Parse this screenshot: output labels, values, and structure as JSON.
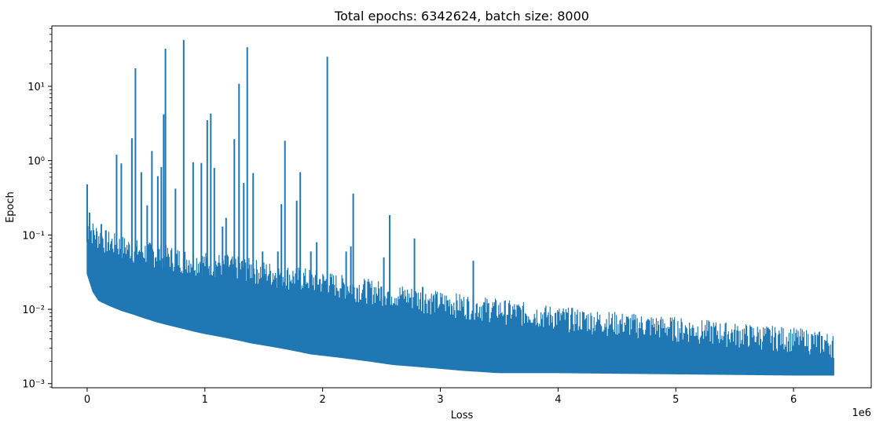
{
  "chart_data": {
    "type": "line",
    "title": "Total epochs: 6342624, batch size: 8000",
    "xlabel": "Loss",
    "ylabel": "Epoch",
    "x_offset_label": "1e6",
    "xscale": "linear",
    "yscale": "log",
    "xlim": [
      -300000,
      6660000
    ],
    "ylim": [
      0.00088,
      65
    ],
    "x_ticks": [
      0,
      1000000,
      2000000,
      3000000,
      4000000,
      5000000,
      6000000
    ],
    "x_tick_labels": [
      "0",
      "1",
      "2",
      "3",
      "4",
      "5",
      "6"
    ],
    "y_ticks": [
      0.001,
      0.01,
      0.1,
      1,
      10
    ],
    "y_tick_labels": [
      "10⁻³",
      "10⁻²",
      "10⁻¹",
      "10⁰",
      "10¹"
    ],
    "grid": false,
    "color": "#1f77b4",
    "series": [
      {
        "name": "",
        "lower_envelope": [
          [
            0,
            0.03
          ],
          [
            50000,
            0.017
          ],
          [
            100000,
            0.013
          ],
          [
            200000,
            0.011
          ],
          [
            300000,
            0.0095
          ],
          [
            400000,
            0.0085
          ],
          [
            500000,
            0.0075
          ],
          [
            600000,
            0.0067
          ],
          [
            700000,
            0.0061
          ],
          [
            800000,
            0.0056
          ],
          [
            900000,
            0.0051
          ],
          [
            1000000,
            0.0047
          ],
          [
            1100000,
            0.0044
          ],
          [
            1200000,
            0.0041
          ],
          [
            1300000,
            0.0038
          ],
          [
            1400000,
            0.0035
          ],
          [
            1500000,
            0.0033
          ],
          [
            1600000,
            0.0031
          ],
          [
            1700000,
            0.0029
          ],
          [
            1800000,
            0.0027
          ],
          [
            1900000,
            0.0025
          ],
          [
            2000000,
            0.0024
          ],
          [
            2200000,
            0.0022
          ],
          [
            2400000,
            0.002
          ],
          [
            2600000,
            0.0018
          ],
          [
            2800000,
            0.0017
          ],
          [
            3000000,
            0.0016
          ],
          [
            3200000,
            0.0015
          ],
          [
            3500000,
            0.0014
          ],
          [
            4000000,
            0.0014
          ],
          [
            5000000,
            0.00135
          ],
          [
            6000000,
            0.0013
          ],
          [
            6342624,
            0.0013
          ]
        ],
        "upper_envelope": [
          [
            0,
            0.08
          ],
          [
            100000,
            0.06
          ],
          [
            200000,
            0.05
          ],
          [
            400000,
            0.04
          ],
          [
            600000,
            0.035
          ],
          [
            800000,
            0.03
          ],
          [
            1000000,
            0.027
          ],
          [
            1200000,
            0.025
          ],
          [
            1400000,
            0.022
          ],
          [
            1600000,
            0.019
          ],
          [
            1800000,
            0.017
          ],
          [
            2000000,
            0.015
          ],
          [
            2200000,
            0.013
          ],
          [
            2500000,
            0.011
          ],
          [
            2800000,
            0.009
          ],
          [
            3000000,
            0.008
          ],
          [
            3300000,
            0.007
          ],
          [
            3600000,
            0.006
          ],
          [
            4000000,
            0.005
          ],
          [
            4500000,
            0.0042
          ],
          [
            5000000,
            0.0036
          ],
          [
            5500000,
            0.003
          ],
          [
            6000000,
            0.0026
          ],
          [
            6342624,
            0.0022
          ]
        ],
        "spikes": [
          [
            0,
            0.48
          ],
          [
            20000,
            0.2
          ],
          [
            120000,
            0.14
          ],
          [
            250000,
            1.2
          ],
          [
            290000,
            0.92
          ],
          [
            380000,
            2.0
          ],
          [
            410000,
            17.5
          ],
          [
            460000,
            0.7
          ],
          [
            510000,
            0.25
          ],
          [
            550000,
            1.35
          ],
          [
            600000,
            0.62
          ],
          [
            630000,
            0.82
          ],
          [
            650000,
            4.2
          ],
          [
            665000,
            32.0
          ],
          [
            750000,
            0.42
          ],
          [
            820000,
            42.0
          ],
          [
            900000,
            0.95
          ],
          [
            970000,
            0.93
          ],
          [
            1020000,
            3.5
          ],
          [
            1050000,
            4.3
          ],
          [
            1080000,
            0.8
          ],
          [
            1150000,
            0.13
          ],
          [
            1180000,
            0.17
          ],
          [
            1250000,
            1.95
          ],
          [
            1290000,
            10.8
          ],
          [
            1330000,
            0.5
          ],
          [
            1360000,
            33.5
          ],
          [
            1410000,
            0.68
          ],
          [
            1490000,
            0.06
          ],
          [
            1620000,
            0.06
          ],
          [
            1650000,
            0.26
          ],
          [
            1680000,
            1.85
          ],
          [
            1780000,
            0.29
          ],
          [
            1810000,
            0.7
          ],
          [
            1900000,
            0.06
          ],
          [
            1950000,
            0.08
          ],
          [
            2040000,
            25.0
          ],
          [
            2200000,
            0.06
          ],
          [
            2240000,
            0.07
          ],
          [
            2260000,
            0.36
          ],
          [
            2520000,
            0.05
          ],
          [
            2570000,
            0.185
          ],
          [
            2780000,
            0.09
          ],
          [
            2850000,
            0.02
          ],
          [
            2960000,
            0.014
          ],
          [
            3280000,
            0.045
          ],
          [
            3800000,
            0.005
          ],
          [
            4300000,
            0.005
          ],
          [
            6000000,
            0.003
          ],
          [
            6100000,
            0.0032
          ]
        ]
      }
    ]
  }
}
